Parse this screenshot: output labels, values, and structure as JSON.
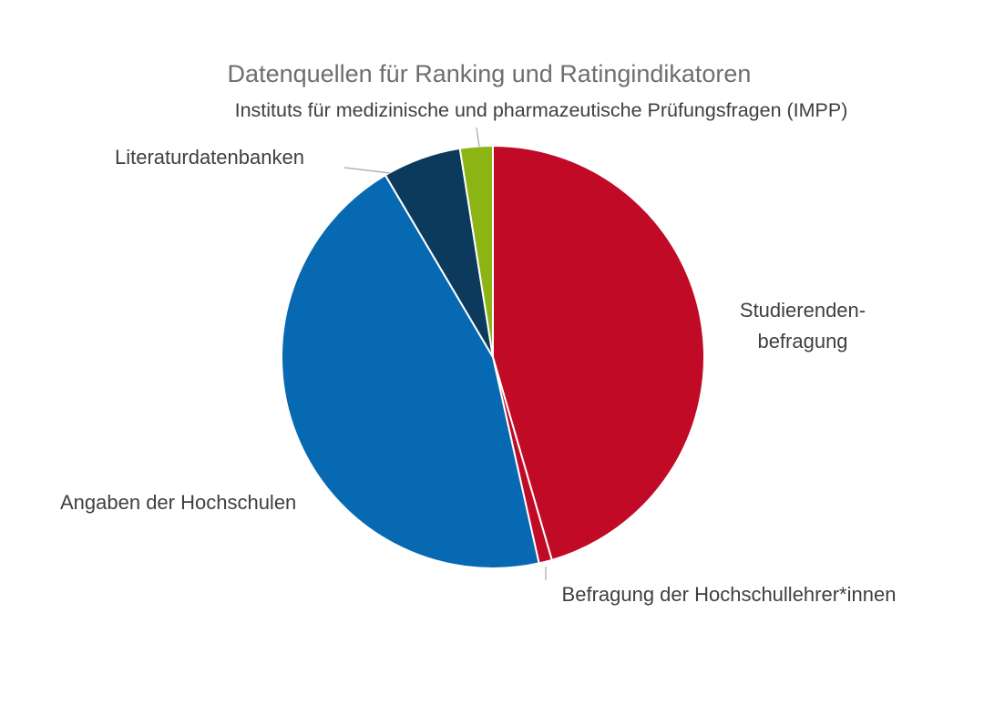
{
  "title": "Datenquellen für Ranking und Ratingindikatoren",
  "colors": {
    "background": "#FFFFFF",
    "title_text": "#6E6E6E",
    "label_text": "#3F3F3F",
    "slice_border": "#FFFFFF",
    "leader_line": "#A6A6A6",
    "red": "#C00A26",
    "blue": "#0769B2",
    "navy": "#0B3A5D",
    "green": "#8CB414"
  },
  "chart_data": {
    "type": "pie",
    "title": "Datenquellen für Ranking und Ratingindikatoren",
    "start_angle_deg": 0,
    "direction": "clockwise",
    "legend_position": "none (labels placed outside slices with leader lines)",
    "grid": false,
    "slices": [
      {
        "id": "studierendenbefragung",
        "label": "Studierendenbefragung",
        "display_lines": [
          "Studierenden-",
          "befragung"
        ],
        "value_pct": 45.5,
        "color": "#C00A26"
      },
      {
        "id": "befragung-hochschullehrer",
        "label": "Befragung der Hochschullehrer*innen",
        "value_pct": 1.0,
        "color": "#C00A26"
      },
      {
        "id": "angaben-hochschulen",
        "label": "Angaben der Hochschulen",
        "value_pct": 45.0,
        "color": "#0769B2"
      },
      {
        "id": "literaturdatenbanken",
        "label": "Literaturdatenbanken",
        "value_pct": 6.0,
        "color": "#0B3A5D"
      },
      {
        "id": "impp",
        "label": "Instituts für medizinische und pharmazeutische Prüfungsfragen (IMPP)",
        "value_pct": 2.5,
        "color": "#8CB414"
      }
    ],
    "leader_lines": [
      {
        "slice": "impp",
        "from": [
          523,
          140
        ],
        "to": [
          526,
          161
        ]
      },
      {
        "slice": "literaturdatenbanken",
        "from": [
          378,
          184
        ],
        "to": [
          428,
          190
        ]
      },
      {
        "slice": "befragung-hochschullehrer",
        "from": [
          599,
          622
        ],
        "to": [
          599,
          637
        ]
      }
    ]
  }
}
